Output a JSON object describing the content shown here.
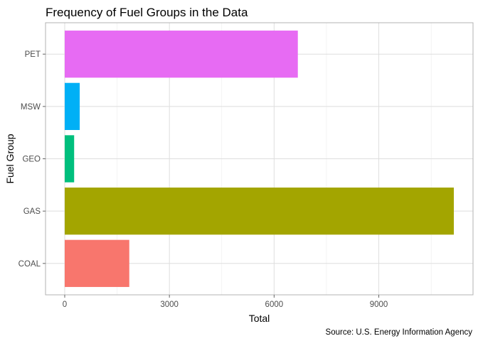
{
  "chart_data": {
    "type": "bar",
    "orientation": "horizontal",
    "title": "Frequency of Fuel Groups in the Data",
    "xlabel": "Total",
    "ylabel": "Fuel Group",
    "caption": "Source: U.S. Energy Information Agency",
    "categories": [
      "COAL",
      "GAS",
      "GEO",
      "MSW",
      "PET"
    ],
    "values": [
      1850,
      11150,
      270,
      430,
      6680
    ],
    "colors": [
      "#F8766D",
      "#A3A500",
      "#00BF7D",
      "#00B0F6",
      "#E76BF3"
    ],
    "x_ticks": [
      0,
      3000,
      6000,
      9000
    ],
    "x_tick_labels": [
      "0",
      "3000",
      "6000",
      "9000"
    ],
    "xlim": [
      -550,
      11700
    ],
    "grid": true,
    "legend": "none"
  }
}
